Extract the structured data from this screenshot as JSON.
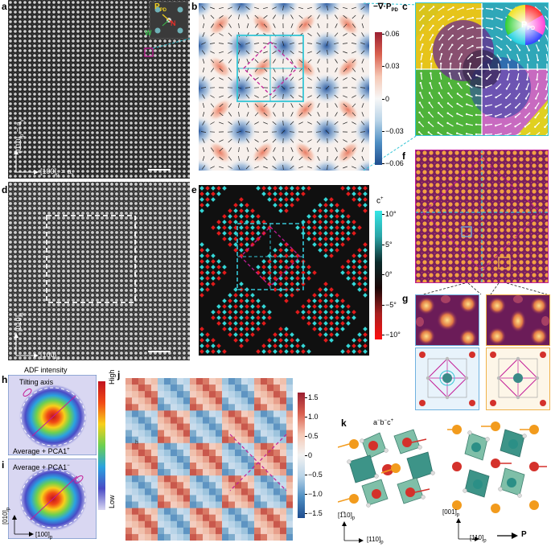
{
  "panels": {
    "a": "a",
    "b": "b",
    "c": "c",
    "d": "d",
    "e": "e",
    "f": "f",
    "g": "g",
    "h": "h",
    "i": "i",
    "j": "j",
    "k": "k"
  },
  "panel_a": {
    "inset_P": "P",
    "inset_P_sub": "PD",
    "inset_N": "N",
    "inset_W": "W",
    "axis_y": "[010]",
    "axis_y_sub": "p",
    "axis_y_tail": " = a",
    "axis_y_tail_sub": "y",
    "axis_x": "[100]",
    "axis_x_sub": "p",
    "axis_x_tail": " = a",
    "axis_x_tail_sub": "x"
  },
  "panel_b": {
    "colorbar_title": "−∇·P",
    "colorbar_title_sub": "PD",
    "ticks": [
      "0.06",
      "0.03",
      "0",
      "−0.03",
      "−0.06"
    ]
  },
  "panel_c": {
    "wheel_label": "P",
    "wheel_label_sub": "PD"
  },
  "panel_d": {
    "axis_y": "[010]",
    "axis_y_sub": "p",
    "axis_x": "[100]",
    "axis_x_sub": "p"
  },
  "panel_e": {
    "colorbar_title": "c",
    "colorbar_title_sup": "+",
    "ticks": [
      "10°",
      "5°",
      "0°",
      "−5°",
      "−10°"
    ]
  },
  "panel_h": {
    "title": "ADF intensity",
    "tilt_label": "Tilting axis",
    "caption": "Average + PCA1",
    "caption_sup": "+",
    "cb_high": "High",
    "cb_low": "Low"
  },
  "panel_i": {
    "caption": "Average + PCA1",
    "caption_sup": "−",
    "axis_y": "[010]",
    "axis_y_sub": "p",
    "axis_x": "[100]",
    "axis_x_sub": "p"
  },
  "panel_j": {
    "ticks": [
      "1.5",
      "1.0",
      "0.5",
      "0",
      "−0.5",
      "−1.0",
      "−1.5"
    ],
    "inner_label": "h"
  },
  "panel_k": {
    "tilt_label": "a",
    "tilt_label_sup1": "−",
    "tilt_mid": "b",
    "tilt_label_sup2": "−",
    "tilt_end": "c",
    "tilt_label_sup3": "+",
    "axis1_y": "[1̅10]",
    "axis1_y_sub": "p",
    "axis1_x": "[110]",
    "axis1_x_sub": "p",
    "axis2_y": "[001]",
    "axis2_y_sub": "p",
    "axis2_x": "[110]",
    "axis2_x_sub": "p",
    "polarization": "P"
  },
  "colors": {
    "cyan": "#35c6d6",
    "magenta": "#c31d98",
    "red": "#d4312b",
    "orange": "#f29b1d",
    "teal": "#2d8f86",
    "dark_blue": "#2b5aa0"
  }
}
